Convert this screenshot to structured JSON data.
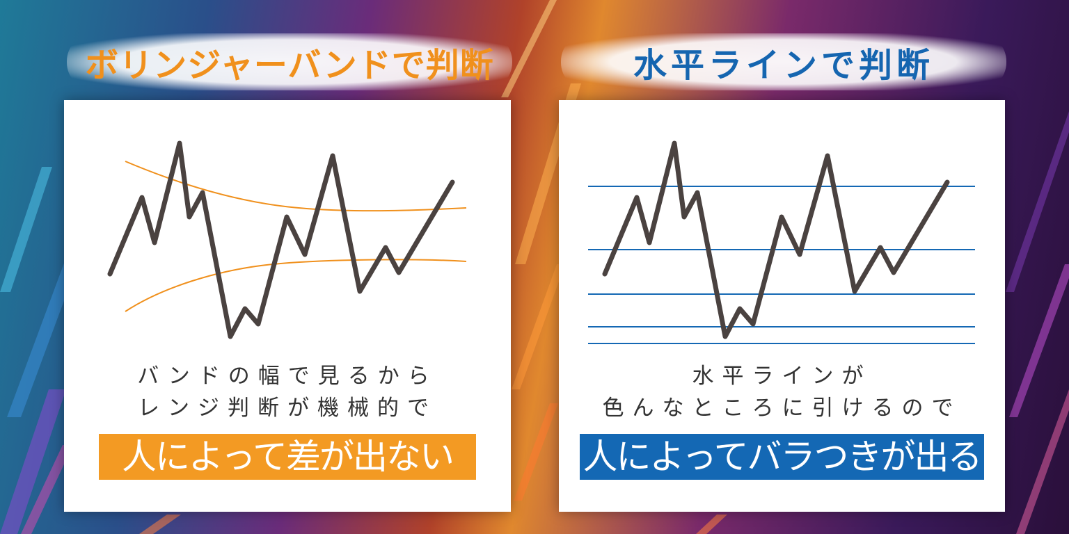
{
  "left": {
    "heading": "ボリンジャーバンドで判断",
    "caption_line1": "バンドの幅で見るから",
    "caption_line2": "レンジ判断が機械的で",
    "highlight": "人によって差が出ない",
    "band_color": "#f0901c",
    "highlight_color": "#f39a23"
  },
  "right": {
    "heading": "水平ラインで判断",
    "caption_line1": "水平ラインが",
    "caption_line2": "色んなところに引けるので",
    "highlight": "人によってバラつきが出る",
    "line_color": "#1468b4",
    "highlight_color": "#1468b4"
  },
  "price_line_color": "#4a4240"
}
